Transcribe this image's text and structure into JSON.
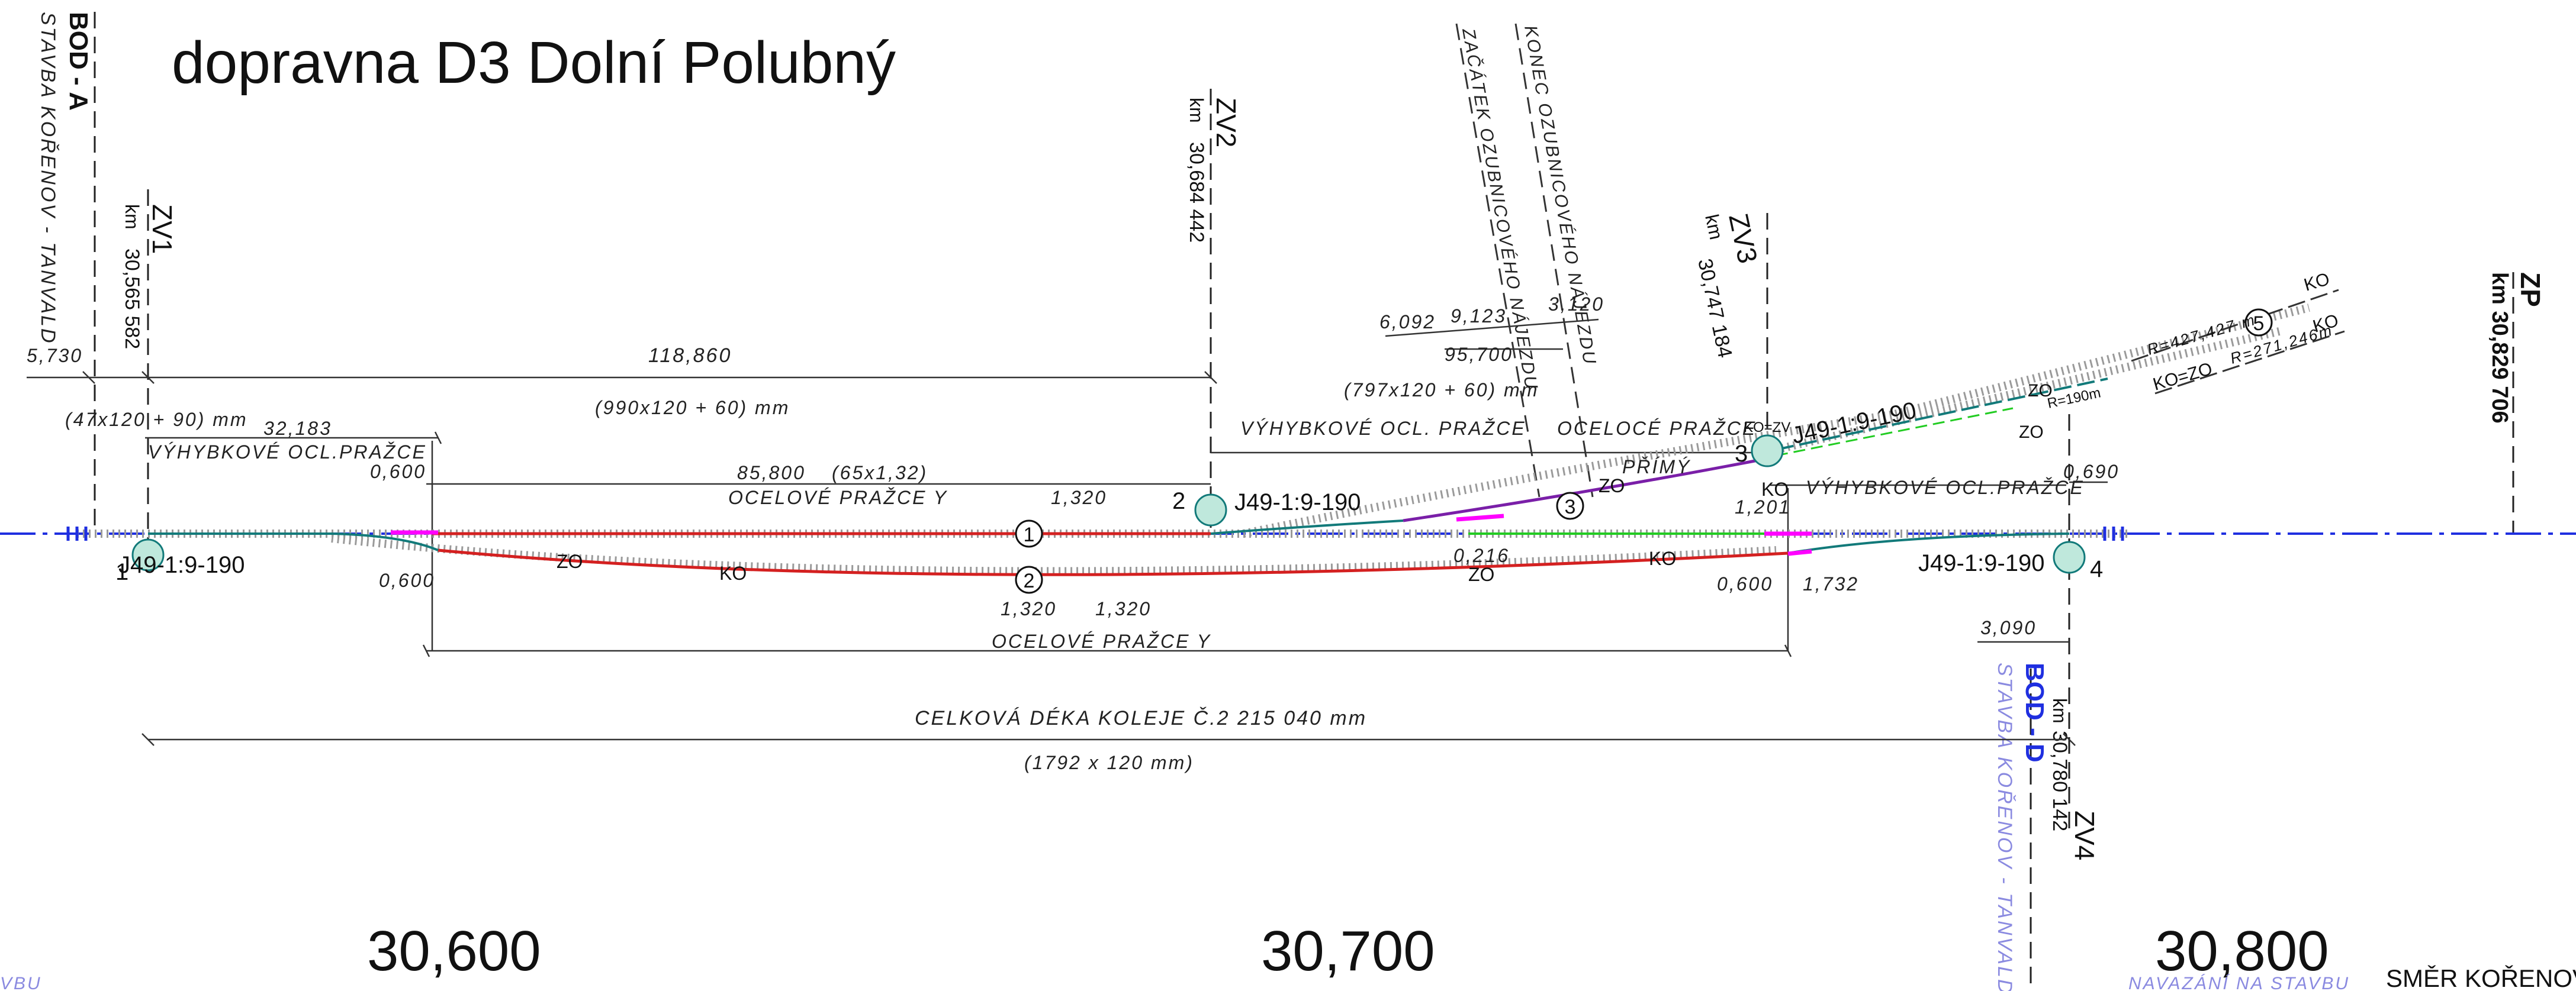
{
  "title": "dopravna D3 Dolní Polubný",
  "boundary_left": {
    "label": "BOD - A",
    "sub": "STAVBA KOŘENOV - TANVALD"
  },
  "boundary_right": {
    "label": "BOD - D",
    "km_label": "km",
    "km": "30,780 142",
    "sub": "STAVBA KOŘENOV - TANVALD"
  },
  "signals": [
    {
      "label": "ZV1",
      "km_label": "km",
      "km": "30,565 582"
    },
    {
      "label": "ZV2",
      "km_label": "km",
      "km": "30,684 442"
    },
    {
      "label": "ZV3",
      "km_label": "km",
      "km": "30,747 184"
    },
    {
      "label": "ZV4"
    },
    {
      "label": "ZP",
      "km": "km 30,829 706"
    }
  ],
  "switch_type": "J49-1:9-190",
  "switches": [
    "1",
    "2",
    "3",
    "4"
  ],
  "tracks": [
    "1",
    "2",
    "3",
    "5"
  ],
  "rack_notes": [
    "ZAČÁTEK OZUBNICOVÉHO NÁJEZDU",
    "KONEC OZUBNICOVÉHO NÁJEZDU"
  ],
  "dimensions": {
    "d5730": "5,730",
    "d118860": "118,860",
    "d32183": "32,183",
    "d0600": "0,600",
    "d85800": "85,800",
    "d65x132": "(65x1,32)",
    "d1320": "1,320",
    "d6092": "6,092",
    "d9123": "9,123",
    "d3120": "3,120",
    "d95700": "95,700",
    "d1201": "1,201",
    "d0690": "0,690",
    "d0216": "0,216",
    "d1732": "1,732",
    "d3090": "3,090",
    "d47x120": "(47x120 + 90) mm",
    "d990x120": "(990x120 + 60) mm",
    "d797x120": "(797x120 + 60) mm",
    "d1792x120": "(1792 x 120 mm)"
  },
  "labels": {
    "vyhybkove_ocl": "VÝHYBKOVÉ OCL.PRAŽCE",
    "vyhybkove_ocl_spaced": "VÝHYBKOVÉ OCL. PRAŽCE",
    "ocelove_y": "OCELOVÉ PRAŽCE Y",
    "oceloce": "OCELOCÉ PRAŽCE",
    "primy": "PŘÍMÝ",
    "total_length": "CELKOVÁ DÉKA KOLEJE Č.2 215 040 mm",
    "zo": "ZO",
    "ko": "KO",
    "ko_zv": "KO=ZV",
    "ko_zo": "KO=ZO",
    "r190": "R=190m",
    "r427": "R=427,427 m",
    "r271": "R=271,246m",
    "direction": "SMĚR KOŘENOV",
    "napojeni": "NAVAZÁNÍ NA STAVBU",
    "partial_left": "VBU"
  },
  "km_markers": [
    "30,600",
    "30,700",
    "30,800"
  ],
  "colors": {
    "main_axis": "#1f2fe0",
    "track_red": "#d42020",
    "track_teal": "#127a7a",
    "track_purple": "#7a1fa8",
    "track_green": "#22cc22",
    "magenta": "#ff00ff",
    "boundary_blue": "#1f2fe0",
    "light_blue": "#8a8ae0"
  }
}
